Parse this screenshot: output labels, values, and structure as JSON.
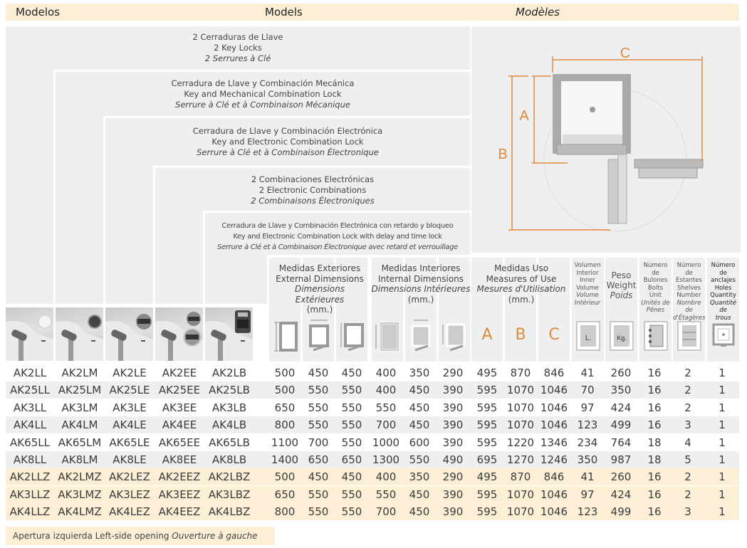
{
  "title_band": {
    "es": "Modelos",
    "en": "Models",
    "fr": "Modèles"
  },
  "lock_types": [
    {
      "es": "2 Cerraduras de Llave",
      "en": "2 Key Locks",
      "fr": "2 Serrures à Clé"
    },
    {
      "es": "Cerradura de Llave y Combinación Mecánica",
      "en": "Key and Mechanical Combination Lock",
      "fr": "Serrure à Clé et à Combinaison Mécanique"
    },
    {
      "es": "Cerradura de Llave y Combinación Electrónica",
      "en": "Key and Electronic Combination Lock",
      "fr": "Serrure à Clé et à Combinaison Électronique"
    },
    {
      "es": "2 Combinaciones Electrónicas",
      "en": "2 Electronic Combinations",
      "fr": "2 Combinaisons Électroniques"
    },
    {
      "es": "Cerradura de Llave y Combinación Electrónica con retardo y bloqueo",
      "en": "Key and Electronic Combination Lock with delay and time lock",
      "fr": "Serrure à Clé et à Combinaison Électronique avec retard et verrouillage"
    }
  ],
  "headers": {
    "external": {
      "es": "Medidas Exteriores",
      "en": "External Dimensions",
      "fr": "Dimensions Extérieures",
      "unit": "(mm.)"
    },
    "internal": {
      "es": "Medidas Interiores",
      "en": "Internal Dimensions",
      "fr": "Dimensions Intérieures",
      "unit": "(mm.)"
    },
    "use": {
      "es": "Medidas Uso",
      "en": "Measures of Use",
      "fr": "Mesures d'Utilisation",
      "unit": "(mm.)",
      "letters": [
        "A",
        "B",
        "C"
      ]
    },
    "volume": {
      "es1": "Volumen",
      "es2": "Interior",
      "en1": "Inner",
      "en2": "Volume",
      "fr1": "Volume",
      "fr2": "Intérieur",
      "icon_label": "L."
    },
    "weight": {
      "es": "Peso",
      "en": "Weight",
      "fr": "Poids",
      "icon_label": "Kg."
    },
    "bolts": {
      "es1": "Número de",
      "es2": "Bulones",
      "en1": "Bolts",
      "en2": "Unit",
      "fr1": "Unités de",
      "fr2": "Pênes"
    },
    "shelves": {
      "es1": "Número de",
      "es2": "Estantes",
      "en1": "Shelves",
      "en2": "Number",
      "fr1": "Nombre de",
      "fr2": "d'Étagères"
    },
    "holes": {
      "es1": "Número",
      "es2": "de anclajes",
      "en1": "Holes",
      "en2": "Quantity",
      "fr1": "Quantité de",
      "fr2": "trous"
    }
  },
  "diagram": {
    "labels": [
      "A",
      "B",
      "C"
    ]
  },
  "rows": [
    {
      "models": [
        "AK2LL",
        "AK2LM",
        "AK2LE",
        "AK2EE",
        "AK2LB"
      ],
      "values": [
        500,
        450,
        450,
        400,
        350,
        290,
        495,
        870,
        846,
        41,
        260,
        16,
        2,
        1
      ],
      "style": "white"
    },
    {
      "models": [
        "AK25LL",
        "AK25LM",
        "AK25LE",
        "AK25EE",
        "AK25LB"
      ],
      "values": [
        500,
        550,
        550,
        400,
        450,
        390,
        595,
        1070,
        1046,
        70,
        350,
        16,
        2,
        1
      ],
      "style": "gray"
    },
    {
      "models": [
        "AK3LL",
        "AK3LM",
        "AK3LE",
        "AK3EE",
        "AK3LB"
      ],
      "values": [
        650,
        550,
        550,
        550,
        450,
        390,
        595,
        1070,
        1046,
        97,
        424,
        16,
        2,
        1
      ],
      "style": "white"
    },
    {
      "models": [
        "AK4LL",
        "AK4LM",
        "AK4LE",
        "AK4EE",
        "AK4LB"
      ],
      "values": [
        800,
        550,
        550,
        700,
        450,
        390,
        595,
        1070,
        1046,
        123,
        499,
        16,
        3,
        1
      ],
      "style": "gray"
    },
    {
      "models": [
        "AK65LL",
        "AK65LM",
        "AK65LE",
        "AK65EE",
        "AK65LB"
      ],
      "values": [
        1100,
        700,
        550,
        1000,
        600,
        390,
        595,
        1220,
        1346,
        234,
        764,
        18,
        4,
        1
      ],
      "style": "white"
    },
    {
      "models": [
        "AK8LL",
        "AK8LM",
        "AK8LE",
        "AK8EE",
        "AK8LB"
      ],
      "values": [
        1400,
        650,
        650,
        1300,
        550,
        490,
        695,
        1270,
        1246,
        350,
        987,
        18,
        5,
        1
      ],
      "style": "gray"
    },
    {
      "models": [
        "AK2LLZ",
        "AK2LMZ",
        "AK2LEZ",
        "AK2EEZ",
        "AK2LBZ"
      ],
      "values": [
        500,
        450,
        450,
        400,
        350,
        290,
        495,
        870,
        846,
        41,
        260,
        16,
        2,
        1
      ],
      "style": "cream"
    },
    {
      "models": [
        "AK3LLZ",
        "AK3LMZ",
        "AK3LEZ",
        "AK3EEZ",
        "AK3LBZ"
      ],
      "values": [
        650,
        550,
        550,
        550,
        450,
        390,
        595,
        1070,
        1046,
        97,
        424,
        16,
        2,
        1
      ],
      "style": "cream"
    },
    {
      "models": [
        "AK4LLZ",
        "AK4LMZ",
        "AK4LEZ",
        "AK4EEZ",
        "AK4LBZ"
      ],
      "values": [
        800,
        550,
        550,
        700,
        450,
        390,
        595,
        1070,
        1046,
        123,
        499,
        16,
        3,
        1
      ],
      "style": "cream"
    }
  ],
  "footer": {
    "es": "Apertura izquierda",
    "en": "Left-side opening",
    "fr": "Ouverture à gauche"
  },
  "colors": {
    "accent": "#e08a3c",
    "cream": "#fcefd6",
    "gray": "#eeeff1"
  }
}
